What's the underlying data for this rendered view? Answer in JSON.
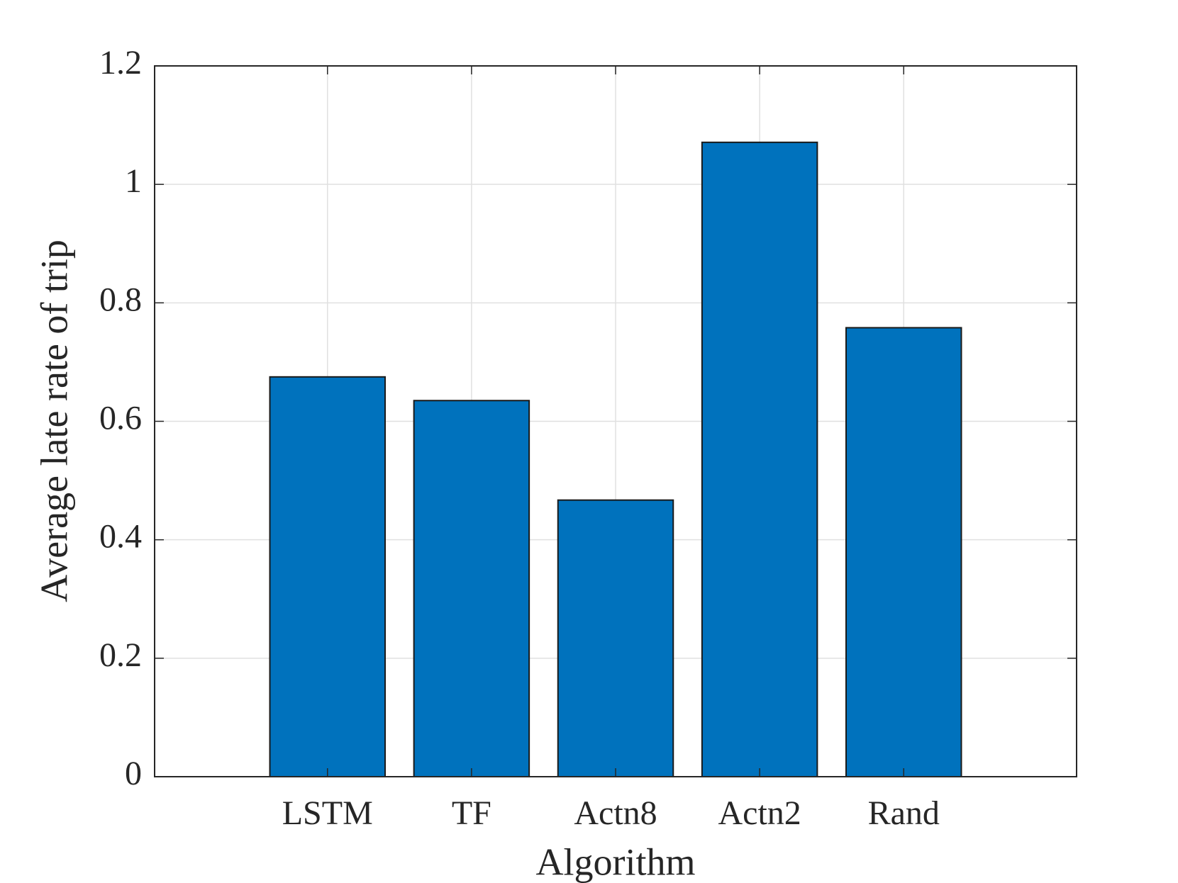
{
  "chart_data": {
    "type": "bar",
    "x_label": "Algorithm",
    "y_label": "Average late rate of trip",
    "categories": [
      "LSTM",
      "TF",
      "Actn8",
      "Actn2",
      "Rand"
    ],
    "values": [
      0.675,
      0.635,
      0.467,
      1.071,
      0.758
    ],
    "color": "#0072bd",
    "ylim": [
      0,
      1.2
    ],
    "yticks": [
      0,
      0.2,
      0.4,
      0.6,
      0.8,
      1,
      1.2
    ],
    "grid": true
  }
}
